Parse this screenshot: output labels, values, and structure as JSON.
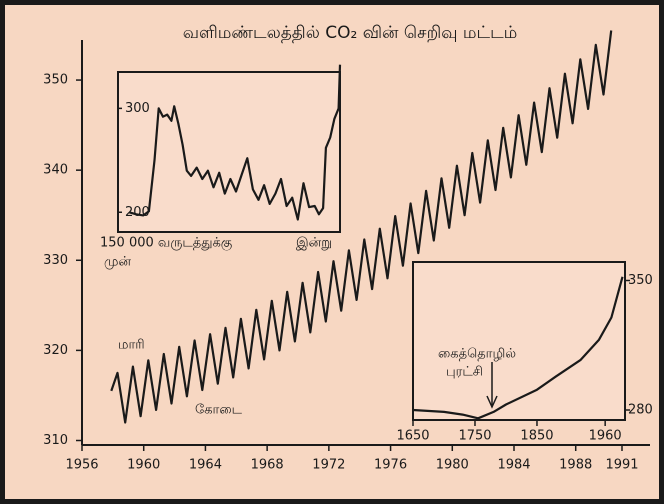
{
  "chart_data": [
    {
      "type": "line",
      "title": "வளிமண்டலத்தில் CO₂ வின் செறிவு மட்டம்",
      "annotations": [
        "மாரி",
        "கோடை"
      ],
      "x": [
        1957.9,
        1958.3,
        1958.8,
        1959.3,
        1959.8,
        1960.3,
        1960.8,
        1961.3,
        1961.8,
        1962.3,
        1962.8,
        1963.3,
        1963.8,
        1964.3,
        1964.8,
        1965.3,
        1965.8,
        1966.3,
        1966.8,
        1967.3,
        1967.8,
        1968.3,
        1968.8,
        1969.3,
        1969.8,
        1970.3,
        1970.8,
        1971.3,
        1971.8,
        1972.3,
        1972.8,
        1973.3,
        1973.8,
        1974.3,
        1974.8,
        1975.3,
        1975.8,
        1976.3,
        1976.8,
        1977.3,
        1977.8,
        1978.3,
        1978.8,
        1979.3,
        1979.8,
        1980.3,
        1980.8,
        1981.3,
        1981.8,
        1982.3,
        1982.8,
        1983.3,
        1983.8,
        1984.3,
        1984.8,
        1985.3,
        1985.8,
        1986.3,
        1986.8,
        1987.3,
        1987.8,
        1988.3,
        1988.8,
        1989.3,
        1989.8,
        1990.3
      ],
      "values": [
        315.5,
        317.5,
        312,
        318.2,
        312.7,
        318.9,
        313.4,
        319.6,
        314.1,
        320.4,
        314.9,
        321.1,
        315.6,
        321.8,
        316.3,
        322.5,
        317,
        323.5,
        318,
        324.5,
        319,
        325.5,
        320,
        326.5,
        321,
        327.5,
        322,
        328.7,
        323.2,
        329.9,
        324.4,
        331.1,
        325.6,
        332.3,
        326.8,
        333.5,
        328,
        334.9,
        329.4,
        336.3,
        330.8,
        337.7,
        332.2,
        339.1,
        333.6,
        340.5,
        335,
        341.9,
        336.4,
        343.3,
        337.8,
        344.7,
        339.2,
        346.1,
        340.6,
        347.5,
        342,
        349.1,
        343.6,
        350.7,
        345.2,
        352.3,
        346.8,
        353.9,
        348.4,
        355.5
      ],
      "color": "#1a1a1a",
      "xlim": [
        1956,
        1991
      ],
      "xticks": [
        1956,
        1960,
        1964,
        1968,
        1972,
        1976,
        1980,
        1984,
        1988,
        1991
      ],
      "ylim": [
        309.5,
        355
      ],
      "yticks": [
        310,
        320,
        330,
        340,
        350
      ]
    },
    {
      "type": "line",
      "annotations": [
        "150 000 வருடத்துக்கு",
        "முன்",
        "இன்று"
      ],
      "x": [
        -150000,
        -145000,
        -140000,
        -136000,
        -132000,
        -129000,
        -126000,
        -123000,
        -120000,
        -118000,
        -115000,
        -112000,
        -109000,
        -106000,
        -102000,
        -98000,
        -94000,
        -90000,
        -86000,
        -82000,
        -78000,
        -74000,
        -70000,
        -66000,
        -62000,
        -58000,
        -54000,
        -50000,
        -46000,
        -42000,
        -38000,
        -34000,
        -30000,
        -26000,
        -22000,
        -18000,
        -15000,
        -12000,
        -10000,
        -7000,
        -4000,
        -1000,
        0
      ],
      "values": [
        200,
        198,
        197,
        201,
        250,
        300,
        292,
        294,
        288,
        302,
        285,
        265,
        240,
        235,
        243,
        232,
        240,
        224,
        238,
        218,
        232,
        220,
        236,
        252,
        222,
        212,
        226,
        208,
        218,
        232,
        206,
        214,
        193,
        228,
        205,
        206,
        198,
        204,
        262,
        272,
        290,
        300,
        342
      ],
      "color": "#1a1a1a",
      "xlim": [
        -158000,
        0
      ],
      "ylim": [
        181,
        335
      ],
      "yticks": [
        200,
        300
      ]
    },
    {
      "type": "line",
      "annotations": [
        "கைத்தொழில்",
        "புரட்சி"
      ],
      "x": [
        1650,
        1700,
        1730,
        1755,
        1780,
        1800,
        1850,
        1880,
        1920,
        1950,
        1970,
        1988
      ],
      "values": [
        280,
        279,
        277.5,
        275.5,
        279,
        283,
        291,
        298,
        307,
        318,
        330,
        352
      ],
      "color": "#1a1a1a",
      "xlim": [
        1650,
        1992
      ],
      "xticks": [
        1650,
        1750,
        1850,
        1960
      ],
      "ylim": [
        274.6,
        360
      ],
      "yticks": [
        280,
        350
      ]
    }
  ]
}
